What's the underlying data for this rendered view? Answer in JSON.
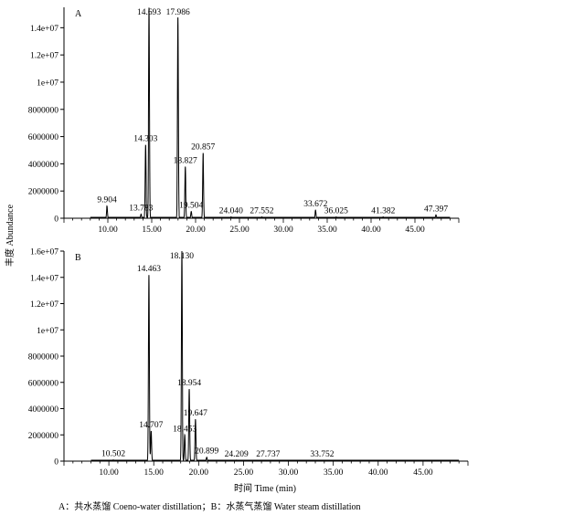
{
  "figure": {
    "ylabel": "丰度 Abundance",
    "xlabel": "时间 Time (min)",
    "caption": "A：共水蒸馏  Coeno-water distillation；B：水蒸气蒸馏  Water steam distillation"
  },
  "chart_data": [
    {
      "type": "line",
      "panel_label": "A",
      "xlim": [
        5,
        50
      ],
      "ylim": [
        0,
        15500000
      ],
      "x_ticks": [
        10,
        15,
        20,
        25,
        30,
        35,
        40,
        45
      ],
      "x_tick_labels": [
        "10.00",
        "15.00",
        "20.00",
        "25.00",
        "30.00",
        "35.00",
        "40.00",
        "45.00"
      ],
      "y_ticks": [
        0,
        2000000,
        4000000,
        6000000,
        8000000,
        10000000,
        12000000,
        14000000
      ],
      "y_tick_labels": [
        "0",
        "2000000",
        "4000000",
        "6000000",
        "8000000",
        "1e+07",
        "1.2e+07",
        "1.4e+07"
      ],
      "peaks": [
        {
          "rt": 9.904,
          "label": "9.904",
          "height": 900000
        },
        {
          "rt": 13.783,
          "label": "13.783",
          "height": 300000
        },
        {
          "rt": 14.303,
          "label": "14.303",
          "height": 5400000
        },
        {
          "rt": 14.693,
          "label": "14.693",
          "height": 15500000
        },
        {
          "rt": 17.986,
          "label": "17.986",
          "height": 14800000
        },
        {
          "rt": 18.827,
          "label": "18.827",
          "height": 3800000
        },
        {
          "rt": 19.504,
          "label": "19.504",
          "height": 500000
        },
        {
          "rt": 20.857,
          "label": "20.857",
          "height": 4800000
        },
        {
          "rt": 24.04,
          "label": "24.040",
          "height": 100000
        },
        {
          "rt": 27.552,
          "label": "27.552",
          "height": 100000
        },
        {
          "rt": 33.672,
          "label": "33.672",
          "height": 600000
        },
        {
          "rt": 36.025,
          "label": "36.025",
          "height": 100000
        },
        {
          "rt": 41.382,
          "label": "41.382",
          "height": 100000
        },
        {
          "rt": 47.397,
          "label": "47.397",
          "height": 250000
        }
      ]
    },
    {
      "type": "line",
      "panel_label": "B",
      "xlim": [
        5,
        50
      ],
      "ylim": [
        0,
        16000000
      ],
      "x_ticks": [
        10,
        15,
        20,
        25,
        30,
        35,
        40,
        45
      ],
      "x_tick_labels": [
        "10.00",
        "15.00",
        "20.00",
        "25.00",
        "30.00",
        "35.00",
        "40.00",
        "45.00"
      ],
      "y_ticks": [
        0,
        2000000,
        4000000,
        6000000,
        8000000,
        10000000,
        12000000,
        14000000,
        16000000
      ],
      "y_tick_labels": [
        "0",
        "2000000",
        "4000000",
        "6000000",
        "8000000",
        "1e+07",
        "1.2e+07",
        "1.4e+07",
        "1.6e+07"
      ],
      "peaks": [
        {
          "rt": 10.502,
          "label": "10.502",
          "height": 100000
        },
        {
          "rt": 14.463,
          "label": "14.463",
          "height": 14200000
        },
        {
          "rt": 14.707,
          "label": "14.707",
          "height": 2300000
        },
        {
          "rt": 18.13,
          "label": "18.130",
          "height": 16000000
        },
        {
          "rt": 18.453,
          "label": "18.453",
          "height": 2000000
        },
        {
          "rt": 18.954,
          "label": "18.954",
          "height": 5500000
        },
        {
          "rt": 19.647,
          "label": "19.647",
          "height": 3200000
        },
        {
          "rt": 20.899,
          "label": "20.899",
          "height": 300000
        },
        {
          "rt": 24.209,
          "label": "24.209",
          "height": 80000
        },
        {
          "rt": 27.737,
          "label": "27.737",
          "height": 60000
        },
        {
          "rt": 33.752,
          "label": "33.752",
          "height": 60000
        }
      ]
    }
  ]
}
